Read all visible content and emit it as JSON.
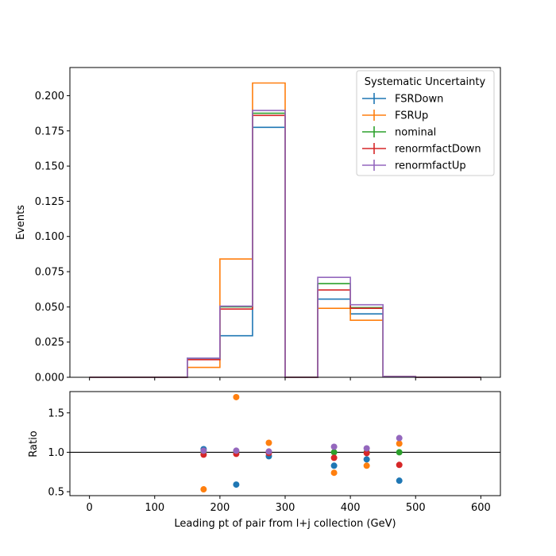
{
  "chart_data": {
    "type": "step",
    "legend": {
      "title": "Systematic Uncertainty",
      "placement": "top-right"
    },
    "colors": {
      "FSRDown": "#1f77b4",
      "FSRUp": "#ff7f0e",
      "nominal": "#2ca02c",
      "renormfactDown": "#d62728",
      "renormfactUp": "#9467bd"
    },
    "bin_edges": [
      0,
      50,
      100,
      150,
      200,
      250,
      300,
      350,
      400,
      450,
      500,
      550,
      600
    ],
    "main": {
      "ylabel": "Events",
      "ylim": [
        0,
        0.22
      ],
      "yticks": [
        "0.000",
        "0.025",
        "0.050",
        "0.075",
        "0.100",
        "0.125",
        "0.150",
        "0.175",
        "0.200"
      ],
      "series": [
        {
          "name": "FSRDown",
          "values": [
            0,
            0,
            0,
            0.0135,
            0.0295,
            0.1775,
            0,
            0.0555,
            0.045,
            0.0005,
            0,
            0
          ]
        },
        {
          "name": "FSRUp",
          "values": [
            0,
            0,
            0,
            0.007,
            0.084,
            0.209,
            0,
            0.049,
            0.0405,
            0.0005,
            0,
            0
          ]
        },
        {
          "name": "nominal",
          "values": [
            0,
            0,
            0,
            0.013,
            0.05,
            0.1875,
            0,
            0.0665,
            0.0495,
            0.0005,
            0,
            0
          ]
        },
        {
          "name": "renormfactDown",
          "values": [
            0,
            0,
            0,
            0.0125,
            0.0485,
            0.186,
            0,
            0.062,
            0.049,
            0.0005,
            0,
            0
          ]
        },
        {
          "name": "renormfactUp",
          "values": [
            0,
            0,
            0,
            0.0135,
            0.0505,
            0.1895,
            0,
            0.071,
            0.0515,
            0.0005,
            0,
            0
          ]
        }
      ]
    },
    "ratio": {
      "ylabel": "Ratio",
      "ylim": [
        0.45,
        1.77
      ],
      "yticks": [
        "0.5",
        "1.0",
        "1.5"
      ],
      "reference_line": 1.0,
      "x": [
        175,
        225,
        275,
        375,
        425,
        475
      ],
      "series": [
        {
          "name": "FSRDown",
          "values": [
            1.04,
            0.59,
            0.95,
            0.83,
            0.91,
            0.64
          ]
        },
        {
          "name": "FSRUp",
          "values": [
            0.53,
            1.7,
            1.12,
            0.74,
            0.83,
            1.11
          ]
        },
        {
          "name": "nominal",
          "values": [
            1.0,
            1.0,
            1.0,
            1.0,
            1.0,
            1.0
          ]
        },
        {
          "name": "renormfactDown",
          "values": [
            0.97,
            0.98,
            0.99,
            0.93,
            0.99,
            0.84
          ]
        },
        {
          "name": "renormfactUp",
          "values": [
            1.02,
            1.02,
            1.01,
            1.07,
            1.05,
            1.18
          ]
        }
      ]
    },
    "xlabel": "Leading pt of pair from l+j collection (GeV)",
    "xlim": [
      -30,
      630
    ],
    "xticks": [
      "0",
      "100",
      "200",
      "300",
      "400",
      "500",
      "600"
    ]
  }
}
